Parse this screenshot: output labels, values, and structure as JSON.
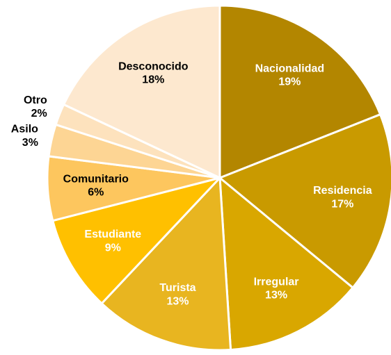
{
  "chart_data": {
    "type": "pie",
    "categories": [
      "Nacionalidad",
      "Residencia",
      "Irregular",
      "Turista",
      "Estudiante",
      "Comunitario",
      "Asilo",
      "Otro",
      "Desconocido"
    ],
    "values": [
      19,
      17,
      13,
      13,
      9,
      6,
      3,
      2,
      18
    ],
    "value_labels": [
      "19%",
      "17%",
      "13%",
      "13%",
      "9%",
      "6%",
      "3%",
      "2%",
      "18%"
    ],
    "colors": [
      "#b38600",
      "#c99a00",
      "#d9a700",
      "#e8b520",
      "#ffc000",
      "#fdc65e",
      "#fdd594",
      "#fde2bd",
      "#fde8cf"
    ],
    "label_colors": [
      "#ffffff",
      "#ffffff",
      "#ffffff",
      "#ffffff",
      "#ffffff",
      "#000000",
      "#000000",
      "#000000",
      "#000000"
    ]
  }
}
